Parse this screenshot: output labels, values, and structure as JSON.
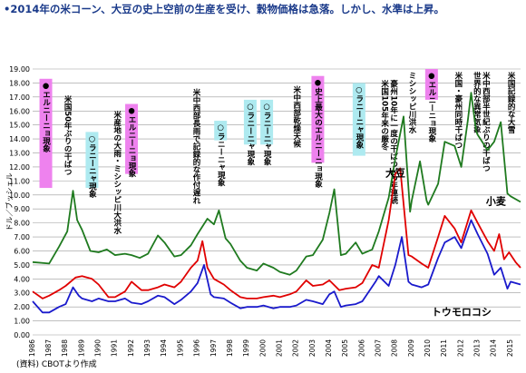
{
  "title": "•2014年の米コーン、大豆の史上空前の生産を受け、穀物価格は急落。しかし、水準は上昇。",
  "source": "(資料) CBOTより作成",
  "colors": {
    "wheat": "#1f7a1f",
    "soy": "#e00000",
    "corn": "#1a1acc",
    "pink": "#ee82ee",
    "cyan": "#aeeaf0",
    "grid": "#9a9a9a"
  },
  "chart_data": {
    "type": "line",
    "ylabel": "ドル／ブッシェル",
    "ylim": [
      0,
      19
    ],
    "yticks": [
      "0.00",
      "1.00",
      "2.00",
      "3.00",
      "4.00",
      "5.00",
      "6.00",
      "7.00",
      "8.00",
      "9.00",
      "10.00",
      "11.00",
      "12.00",
      "13.00",
      "14.00",
      "15.00",
      "16.00",
      "17.00",
      "18.00",
      "19.00"
    ],
    "xlim": [
      1986,
      2015.6
    ],
    "xticks": [
      "1986",
      "1987",
      "1988",
      "1989",
      "1990",
      "1991",
      "1992",
      "1993",
      "1994",
      "1995",
      "1996",
      "1997",
      "1998",
      "1999",
      "2000",
      "2001",
      "2002",
      "2003",
      "2004",
      "2005",
      "2006",
      "2007",
      "2008",
      "2009",
      "2010",
      "2011",
      "2012",
      "2013",
      "2014",
      "2015"
    ],
    "series": [
      {
        "name": "大豆",
        "color": "#1f7a1f",
        "points": [
          [
            1986,
            5.2
          ],
          [
            1987,
            5.1
          ],
          [
            1987.6,
            6.3
          ],
          [
            1988.1,
            7.4
          ],
          [
            1988.45,
            10.3
          ],
          [
            1988.7,
            8.2
          ],
          [
            1989,
            7.5
          ],
          [
            1989.5,
            6.0
          ],
          [
            1990,
            5.9
          ],
          [
            1990.5,
            6.1
          ],
          [
            1991,
            5.7
          ],
          [
            1991.6,
            5.8
          ],
          [
            1992,
            5.7
          ],
          [
            1992.5,
            5.5
          ],
          [
            1993,
            5.8
          ],
          [
            1993.6,
            7.1
          ],
          [
            1994,
            6.6
          ],
          [
            1994.6,
            5.6
          ],
          [
            1995,
            5.7
          ],
          [
            1995.6,
            6.4
          ],
          [
            1996,
            7.2
          ],
          [
            1996.6,
            8.3
          ],
          [
            1997,
            7.9
          ],
          [
            1997.3,
            8.9
          ],
          [
            1997.7,
            6.9
          ],
          [
            1998,
            6.5
          ],
          [
            1998.6,
            5.3
          ],
          [
            1999,
            4.8
          ],
          [
            1999.6,
            4.6
          ],
          [
            2000,
            5.1
          ],
          [
            2000.6,
            4.8
          ],
          [
            2001,
            4.5
          ],
          [
            2001.6,
            4.3
          ],
          [
            2002,
            4.6
          ],
          [
            2002.6,
            5.6
          ],
          [
            2003,
            5.7
          ],
          [
            2003.6,
            6.8
          ],
          [
            2004,
            8.7
          ],
          [
            2004.3,
            10.4
          ],
          [
            2004.7,
            5.7
          ],
          [
            2005,
            5.8
          ],
          [
            2005.6,
            6.6
          ],
          [
            2006,
            5.8
          ],
          [
            2006.6,
            6.1
          ],
          [
            2007,
            7.4
          ],
          [
            2007.6,
            9.8
          ],
          [
            2008,
            12.6
          ],
          [
            2008.5,
            15.6
          ],
          [
            2008.9,
            8.8
          ],
          [
            2009,
            9.6
          ],
          [
            2009.5,
            12.4
          ],
          [
            2009.9,
            9.6
          ],
          [
            2010,
            9.3
          ],
          [
            2010.6,
            10.8
          ],
          [
            2011,
            13.8
          ],
          [
            2011.6,
            13.5
          ],
          [
            2012,
            12.0
          ],
          [
            2012.4,
            15.3
          ],
          [
            2012.6,
            17.3
          ],
          [
            2012.9,
            14.6
          ],
          [
            2013,
            14.3
          ],
          [
            2013.6,
            13.2
          ],
          [
            2014,
            13.8
          ],
          [
            2014.4,
            15.2
          ],
          [
            2014.8,
            10.1
          ],
          [
            2015,
            9.9
          ],
          [
            2015.6,
            9.5
          ]
        ]
      },
      {
        "name": "小麦",
        "color": "#e00000",
        "points": [
          [
            1986,
            3.1
          ],
          [
            1986.6,
            2.6
          ],
          [
            1987,
            2.8
          ],
          [
            1987.6,
            3.2
          ],
          [
            1988,
            3.5
          ],
          [
            1988.6,
            4.1
          ],
          [
            1989,
            4.2
          ],
          [
            1989.6,
            4.0
          ],
          [
            1990,
            3.6
          ],
          [
            1990.6,
            2.7
          ],
          [
            1991,
            2.7
          ],
          [
            1991.6,
            3.1
          ],
          [
            1992,
            3.8
          ],
          [
            1992.6,
            3.2
          ],
          [
            1993,
            3.2
          ],
          [
            1993.6,
            3.4
          ],
          [
            1994,
            3.6
          ],
          [
            1994.6,
            3.4
          ],
          [
            1995,
            3.8
          ],
          [
            1995.6,
            4.8
          ],
          [
            1996,
            5.3
          ],
          [
            1996.3,
            6.7
          ],
          [
            1996.6,
            4.8
          ],
          [
            1997,
            4.0
          ],
          [
            1997.6,
            3.6
          ],
          [
            1998,
            3.2
          ],
          [
            1998.6,
            2.7
          ],
          [
            1999,
            2.6
          ],
          [
            1999.6,
            2.6
          ],
          [
            2000,
            2.7
          ],
          [
            2000.6,
            2.8
          ],
          [
            2001,
            2.7
          ],
          [
            2001.6,
            2.9
          ],
          [
            2002,
            3.1
          ],
          [
            2002.6,
            3.9
          ],
          [
            2003,
            3.5
          ],
          [
            2003.6,
            3.6
          ],
          [
            2004,
            3.9
          ],
          [
            2004.6,
            3.2
          ],
          [
            2005,
            3.3
          ],
          [
            2005.6,
            3.4
          ],
          [
            2006,
            3.7
          ],
          [
            2006.6,
            5.0
          ],
          [
            2007,
            4.8
          ],
          [
            2007.6,
            8.2
          ],
          [
            2008,
            11.5
          ],
          [
            2008.3,
            11.9
          ],
          [
            2008.8,
            5.7
          ],
          [
            2009,
            5.6
          ],
          [
            2009.6,
            5.1
          ],
          [
            2010,
            4.8
          ],
          [
            2010.6,
            7.0
          ],
          [
            2011,
            8.5
          ],
          [
            2011.6,
            7.6
          ],
          [
            2012,
            6.6
          ],
          [
            2012.6,
            8.9
          ],
          [
            2013,
            8.0
          ],
          [
            2013.6,
            6.7
          ],
          [
            2014,
            6.0
          ],
          [
            2014.3,
            7.2
          ],
          [
            2014.6,
            5.4
          ],
          [
            2014.9,
            5.9
          ],
          [
            2015.3,
            5.2
          ],
          [
            2015.6,
            4.8
          ]
        ]
      },
      {
        "name": "トウモロコシ",
        "color": "#1a1acc",
        "points": [
          [
            1986,
            2.4
          ],
          [
            1986.6,
            1.6
          ],
          [
            1987,
            1.6
          ],
          [
            1987.6,
            2.0
          ],
          [
            1988,
            2.2
          ],
          [
            1988.45,
            3.4
          ],
          [
            1988.8,
            2.8
          ],
          [
            1989,
            2.6
          ],
          [
            1989.6,
            2.4
          ],
          [
            1990,
            2.6
          ],
          [
            1990.6,
            2.4
          ],
          [
            1991,
            2.4
          ],
          [
            1991.6,
            2.6
          ],
          [
            1992,
            2.3
          ],
          [
            1992.6,
            2.2
          ],
          [
            1993,
            2.4
          ],
          [
            1993.6,
            2.8
          ],
          [
            1994,
            2.7
          ],
          [
            1994.6,
            2.2
          ],
          [
            1995,
            2.5
          ],
          [
            1995.6,
            3.1
          ],
          [
            1996,
            3.7
          ],
          [
            1996.4,
            5.0
          ],
          [
            1996.8,
            2.9
          ],
          [
            1997,
            2.7
          ],
          [
            1997.6,
            2.6
          ],
          [
            1998,
            2.3
          ],
          [
            1998.6,
            1.9
          ],
          [
            1999,
            2.0
          ],
          [
            1999.6,
            2.0
          ],
          [
            2000,
            2.1
          ],
          [
            2000.6,
            1.9
          ],
          [
            2001,
            2.0
          ],
          [
            2001.6,
            2.0
          ],
          [
            2002,
            2.1
          ],
          [
            2002.6,
            2.5
          ],
          [
            2003,
            2.4
          ],
          [
            2003.6,
            2.2
          ],
          [
            2004,
            2.9
          ],
          [
            2004.3,
            3.1
          ],
          [
            2004.7,
            2.0
          ],
          [
            2005,
            2.1
          ],
          [
            2005.6,
            2.2
          ],
          [
            2006,
            2.4
          ],
          [
            2006.8,
            3.8
          ],
          [
            2007,
            4.2
          ],
          [
            2007.6,
            3.5
          ],
          [
            2008,
            5.0
          ],
          [
            2008.4,
            7.0
          ],
          [
            2008.8,
            3.8
          ],
          [
            2009,
            3.6
          ],
          [
            2009.6,
            3.4
          ],
          [
            2010,
            3.6
          ],
          [
            2010.6,
            5.5
          ],
          [
            2011,
            6.6
          ],
          [
            2011.6,
            7.0
          ],
          [
            2012,
            6.2
          ],
          [
            2012.6,
            8.2
          ],
          [
            2013,
            7.2
          ],
          [
            2013.6,
            5.8
          ],
          [
            2014,
            4.3
          ],
          [
            2014.4,
            4.8
          ],
          [
            2014.8,
            3.3
          ],
          [
            2015,
            3.8
          ],
          [
            2015.6,
            3.6
          ]
        ]
      }
    ],
    "series_labels": [
      {
        "series": "大豆",
        "text": "大豆",
        "x": 2007.4,
        "y": 11.3
      },
      {
        "series": "小麦",
        "text": "小麦",
        "x": 2013.5,
        "y": 9.3
      },
      {
        "series": "トウモロコシ",
        "text": "トウモロコシ",
        "x": 2010.2,
        "y": 1.4
      }
    ],
    "events": [
      {
        "kind": "pink",
        "text": "●エルニーニョ現象",
        "x": 1986.8,
        "top": 18.3,
        "bottom": 10.5
      },
      {
        "kind": "plain",
        "text": "米国50年ぶりの干ばつ",
        "x": 1988.1,
        "top": 17.3,
        "bottom": 13.7
      },
      {
        "kind": "cyan",
        "text": "○ラニーニャ現象",
        "x": 1989.6,
        "top": 14.5,
        "bottom": 10.5
      },
      {
        "kind": "plain",
        "text": "米産地の大雨・ミシシッピ川大洪水",
        "x": 1991.1,
        "top": 16.2,
        "bottom": 11.3
      },
      {
        "kind": "pink",
        "text": "●エルニーニョ現象",
        "x": 1992.0,
        "top": 16.5,
        "bottom": 11.5
      },
      {
        "kind": "plain",
        "text": "米中西部長雨で記録的な作付遅れ",
        "x": 1995.9,
        "top": 17.8,
        "bottom": 12.5
      },
      {
        "kind": "cyan",
        "text": "○ラニーニャ現象",
        "x": 1997.4,
        "top": 15.3,
        "bottom": 13.9
      },
      {
        "kind": "cyan",
        "text": "○ラニーニャ現象",
        "x": 1999.2,
        "top": 16.8,
        "bottom": 13.6
      },
      {
        "kind": "cyan",
        "text": "○ラニーニャ現象",
        "x": 2000.2,
        "top": 16.8,
        "bottom": 13.6
      },
      {
        "kind": "plain",
        "text": "米中西部乾燥天候",
        "x": 2002.0,
        "top": 18.0,
        "bottom": 12.5
      },
      {
        "kind": "pink",
        "text": "●史上最大のエルニーニョ現象",
        "x": 2003.3,
        "top": 18.5,
        "bottom": 12.3
      },
      {
        "kind": "cyan",
        "text": "○ラニーニャ現象",
        "x": 2005.8,
        "top": 18.0,
        "bottom": 12.8
      },
      {
        "kind": "plain",
        "text": "豪州10年に一度の干ばつが2年連続 米国105年来の厳冬",
        "x": 2007.6,
        "top": 18.4,
        "bottom": 12.6
      },
      {
        "kind": "plain",
        "text": "ミシシッピ川洪水",
        "x": 2009.0,
        "top": 19.0,
        "bottom": 15.2
      },
      {
        "kind": "pink",
        "text": "●エルニーニョ現象",
        "x": 2010.2,
        "top": 19.0,
        "bottom": 16.8
      },
      {
        "kind": "plain",
        "text": "米国・豪州同時干ばつ",
        "x": 2011.8,
        "top": 19.0,
        "bottom": 16.8
      },
      {
        "kind": "plain",
        "text": "米中西部半世紀ぶりの干ばつ 世界的な異常気象",
        "x": 2013.2,
        "top": 19.0,
        "bottom": 14.6
      },
      {
        "kind": "plain",
        "text": "米国記録的な大雪",
        "x": 2015.0,
        "top": 19.0,
        "bottom": 11.2
      }
    ]
  }
}
